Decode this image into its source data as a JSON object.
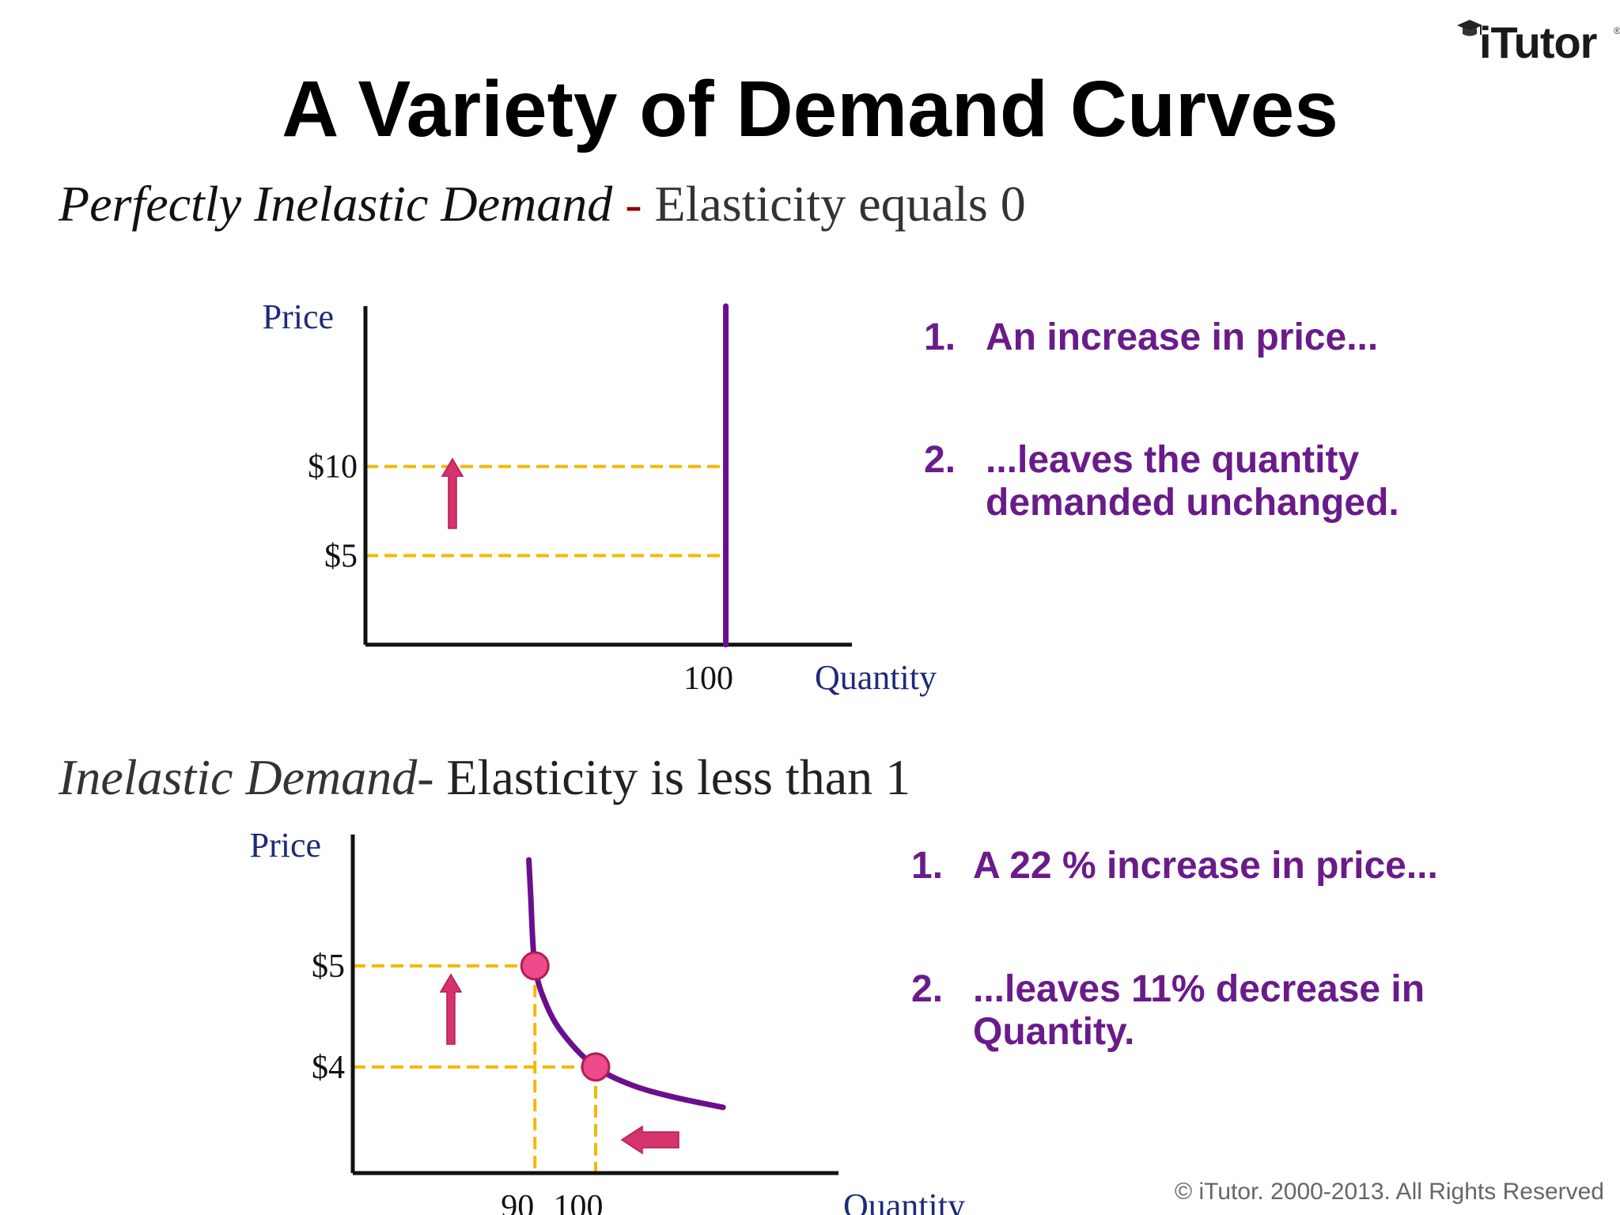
{
  "logo_text": "iTutor",
  "logo_reg": "®",
  "title": "A Variety of Demand Curves",
  "section1": {
    "italic": "Perfectly Inelastic Demand",
    "dash": " - ",
    "rest": "Elasticity equals 0",
    "notes": [
      {
        "num": "1.",
        "lines": [
          "An increase in price..."
        ]
      },
      {
        "num": "2.",
        "lines": [
          "...leaves the quantity",
          "demanded unchanged."
        ]
      }
    ]
  },
  "section2": {
    "italic": "Inelastic Demand",
    "dash": "- ",
    "rest": "Elasticity is less than 1",
    "notes": [
      {
        "num": "1.",
        "lines": [
          "A 22 % increase in price..."
        ]
      },
      {
        "num": "2.",
        "lines": [
          "...leaves 11% decrease in",
          "Quantity."
        ]
      }
    ]
  },
  "chart_data": [
    {
      "type": "line",
      "title": "Perfectly Inelastic Demand",
      "xlabel": "Quantity",
      "ylabel": "Price",
      "x_ticks": [
        {
          "value": 100,
          "label": "100"
        }
      ],
      "y_ticks": [
        {
          "value": 10,
          "label": "$10"
        },
        {
          "value": 5,
          "label": "$5"
        }
      ],
      "xlim": [
        0,
        135
      ],
      "ylim": [
        0,
        19
      ],
      "series": [
        {
          "points": [
            [
              100,
              0
            ],
            [
              100,
              19
            ]
          ],
          "color": "#6a0f8e"
        }
      ],
      "guides": [
        {
          "from": [
            0,
            10
          ],
          "to": [
            100,
            10
          ],
          "color": "#f5b800"
        },
        {
          "from": [
            0,
            5
          ],
          "to": [
            100,
            5
          ],
          "color": "#f5b800"
        }
      ],
      "arrows": [
        {
          "direction": "up",
          "color": "#d6336c"
        }
      ],
      "grid": false,
      "legend": "none"
    },
    {
      "type": "line",
      "title": "Inelastic Demand",
      "xlabel": "Quantity",
      "ylabel": "Price",
      "x_ticks": [
        {
          "value": 90,
          "label": "90"
        },
        {
          "value": 100,
          "label": "100"
        }
      ],
      "y_ticks": [
        {
          "value": 5,
          "label": "$5"
        },
        {
          "value": 4,
          "label": "$4"
        }
      ],
      "xlim": [
        60,
        140
      ],
      "ylim": [
        2.95,
        6.3
      ],
      "series": [
        {
          "points": [
            [
              89,
              6.05
            ],
            [
              89.3,
              5.7
            ],
            [
              90,
              5
            ],
            [
              92,
              4.6
            ],
            [
              95,
              4.3
            ],
            [
              100,
              4
            ],
            [
              106,
              3.82
            ],
            [
              113,
              3.7
            ],
            [
              121,
              3.6
            ]
          ],
          "color": "#6a0f8e"
        }
      ],
      "highlight_points": [
        [
          90,
          5
        ],
        [
          100,
          4
        ]
      ],
      "guides": [
        {
          "from": [
            60,
            5
          ],
          "to": [
            90,
            5
          ],
          "color": "#f5b800"
        },
        {
          "from": [
            60,
            4
          ],
          "to": [
            100,
            4
          ],
          "color": "#f5b800"
        },
        {
          "from": [
            90,
            5
          ],
          "to": [
            90,
            2.95
          ],
          "color": "#f5b800"
        },
        {
          "from": [
            100,
            4
          ],
          "to": [
            100,
            2.95
          ],
          "color": "#f5b800"
        }
      ],
      "arrows": [
        {
          "direction": "up",
          "color": "#d6336c"
        },
        {
          "direction": "left",
          "color": "#d6336c"
        }
      ],
      "grid": false,
      "legend": "none"
    }
  ],
  "copyright": "© iTutor. 2000-2013. All Rights Reserved"
}
